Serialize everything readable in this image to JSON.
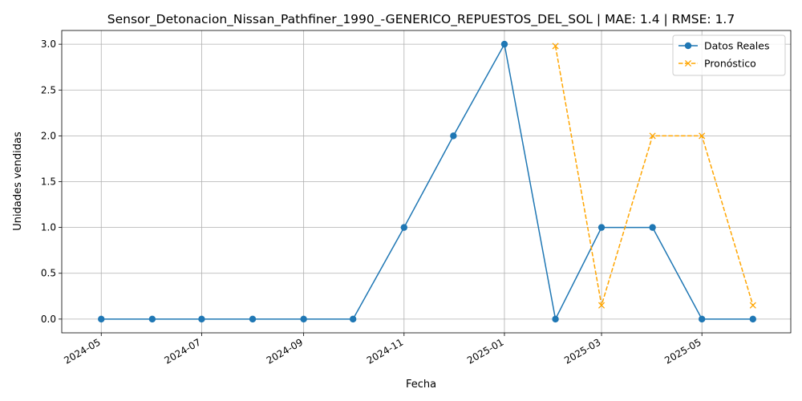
{
  "chart_data": {
    "type": "line",
    "title": "Sensor_Detonacion_Nissan_Pathfiner_1990_-GENERICO_REPUESTOS_DEL_SOL | MAE: 1.4 | RMSE: 1.7",
    "xlabel": "Fecha",
    "ylabel": "Unidades vendidas",
    "x_tick_labels": [
      "2024-05",
      "2024-07",
      "2024-09",
      "2024-11",
      "2025-01",
      "2025-03",
      "2025-05"
    ],
    "x_ticks": [
      "2024-05-01",
      "2024-07-01",
      "2024-09-01",
      "2024-11-01",
      "2025-01-01",
      "2025-03-01",
      "2025-05-01"
    ],
    "y_tick_labels": [
      "0.0",
      "0.5",
      "1.0",
      "1.5",
      "2.0",
      "2.5",
      "3.0"
    ],
    "y_ticks": [
      0,
      0.5,
      1.0,
      1.5,
      2.0,
      2.5,
      3.0
    ],
    "xlim": [
      "2024-04-07",
      "2025-06-24"
    ],
    "ylim": [
      -0.15,
      3.15
    ],
    "grid": true,
    "legend_position": "top-right",
    "series": [
      {
        "name": "Datos Reales",
        "color": "#1f77b4",
        "line_style": "solid",
        "marker": "circle",
        "x": [
          "2024-05-01",
          "2024-06-01",
          "2024-07-01",
          "2024-08-01",
          "2024-09-01",
          "2024-10-01",
          "2024-11-01",
          "2024-12-01",
          "2025-01-01",
          "2025-02-01",
          "2025-03-01",
          "2025-04-01",
          "2025-05-01",
          "2025-06-01"
        ],
        "values": [
          0,
          0,
          0,
          0,
          0,
          0,
          1,
          2,
          3,
          0,
          1,
          1,
          0,
          0
        ]
      },
      {
        "name": "Pronóstico",
        "color": "#ffa500",
        "line_style": "dashed",
        "marker": "x",
        "x": [
          "2025-02-01",
          "2025-03-01",
          "2025-04-01",
          "2025-05-01",
          "2025-06-01"
        ],
        "values": [
          2.98,
          0.15,
          2.0,
          2.0,
          0.15
        ]
      }
    ]
  }
}
